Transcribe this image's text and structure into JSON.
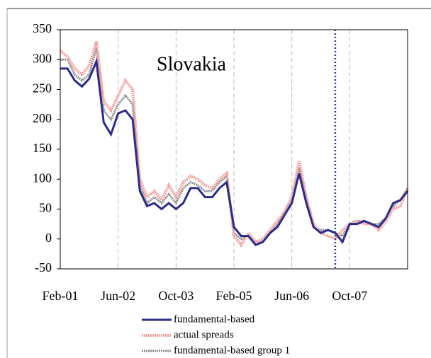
{
  "chart_data": {
    "type": "line",
    "title": "Slovakia",
    "categories": [
      "Feb-01",
      null,
      null,
      null,
      null,
      null,
      null,
      null,
      "Jun-02",
      null,
      null,
      null,
      null,
      null,
      null,
      null,
      "Oct-03",
      null,
      null,
      null,
      null,
      null,
      null,
      null,
      "Feb-05",
      null,
      null,
      null,
      null,
      null,
      null,
      null,
      "Jun-06",
      null,
      null,
      null,
      null,
      null,
      null,
      null,
      "Oct-07",
      null,
      null,
      null,
      null,
      null,
      null,
      null,
      null
    ],
    "series": [
      {
        "name": "fundamental-based",
        "color": "#2b2b8a",
        "values": [
          285,
          285,
          265,
          255,
          268,
          297,
          195,
          175,
          210,
          215,
          200,
          80,
          55,
          60,
          50,
          60,
          50,
          60,
          85,
          85,
          70,
          70,
          85,
          95,
          20,
          5,
          5,
          -10,
          -5,
          10,
          20,
          40,
          60,
          110,
          60,
          20,
          10,
          15,
          10,
          -5,
          25,
          25,
          30,
          25,
          20,
          35,
          60,
          65,
          80
        ]
      },
      {
        "name": "actual spreads",
        "color": "#f4a0a0",
        "values": [
          315,
          305,
          285,
          275,
          290,
          330,
          230,
          215,
          240,
          265,
          250,
          100,
          70,
          80,
          65,
          90,
          70,
          95,
          105,
          100,
          90,
          85,
          100,
          110,
          5,
          -10,
          10,
          -5,
          0,
          15,
          30,
          45,
          70,
          130,
          70,
          25,
          10,
          5,
          0,
          15,
          25,
          30,
          25,
          25,
          15,
          30,
          50,
          55,
          85
        ]
      },
      {
        "name": "fundamental-based group 1",
        "color": "#8c8c8c",
        "values": [
          300,
          300,
          275,
          265,
          275,
          320,
          215,
          200,
          225,
          240,
          225,
          90,
          60,
          70,
          60,
          75,
          60,
          85,
          95,
          90,
          80,
          80,
          95,
          105,
          10,
          0,
          5,
          -5,
          -5,
          10,
          25,
          45,
          65,
          120,
          65,
          20,
          15,
          15,
          10,
          5,
          25,
          30,
          30,
          25,
          25,
          35,
          55,
          65,
          85
        ]
      }
    ],
    "ylim": [
      -50,
      350
    ],
    "yticks": [
      -50,
      0,
      50,
      100,
      150,
      200,
      250,
      300,
      350
    ],
    "vline_category": 38,
    "vline_color": "#2b3fa0",
    "grid": true
  }
}
